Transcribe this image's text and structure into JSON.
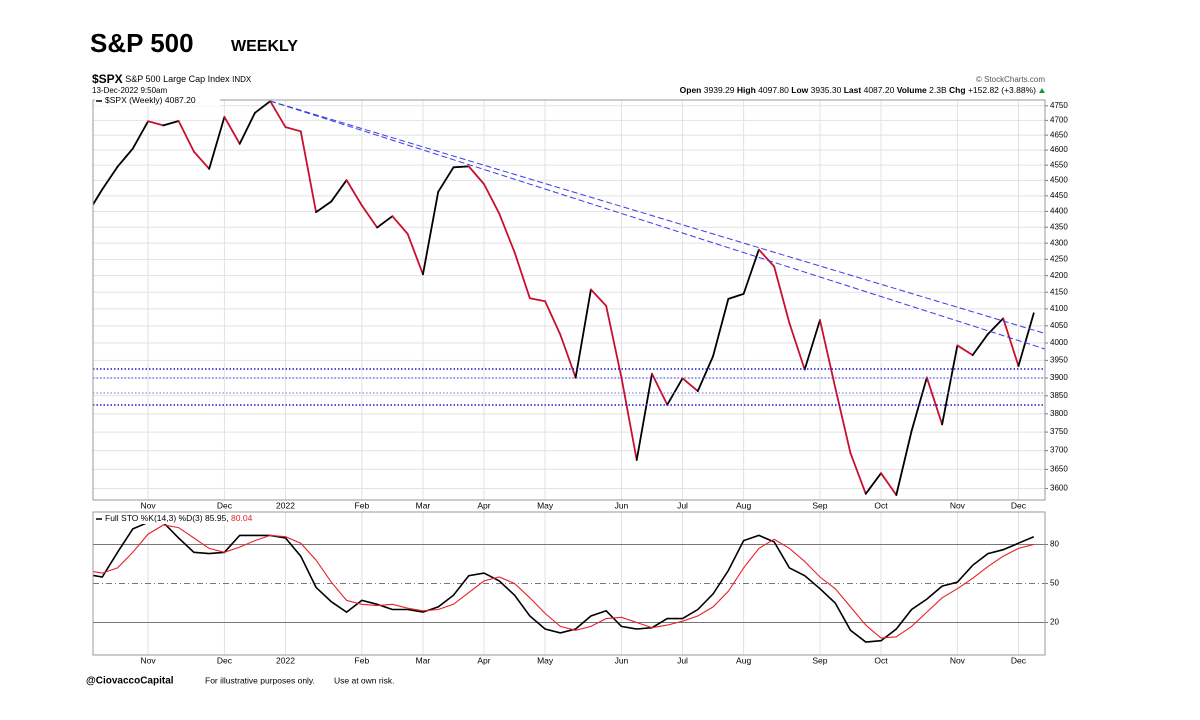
{
  "header": {
    "title": "S&P 500",
    "subtitle": "WEEKLY",
    "symbol": "$SPX",
    "name": "S&P 500 Large Cap Index",
    "exchange": "INDX",
    "date": "13-Dec-2022 9:50am",
    "source": "© StockCharts.com",
    "open_label": "Open",
    "open": "3939.29",
    "high_label": "High",
    "high": "4097.80",
    "low_label": "Low",
    "low": "3935.30",
    "last_label": "Last",
    "last": "4087.20",
    "volume_label": "Volume",
    "volume": "2.3B",
    "chg_label": "Chg",
    "chg": "+152.82 (+3.88%)"
  },
  "chart_data": [
    {
      "type": "line",
      "categories": [
        null,
        null,
        null,
        null,
        "Nov",
        null,
        null,
        null,
        null,
        "Dec",
        null,
        null,
        null,
        "2022",
        null,
        null,
        null,
        null,
        "Feb",
        null,
        null,
        null,
        "Mar",
        null,
        null,
        null,
        "Apr",
        null,
        null,
        null,
        "May",
        null,
        null,
        null,
        null,
        "Jun",
        null,
        null,
        null,
        "Jul",
        null,
        null,
        null,
        "Aug",
        null,
        null,
        null,
        null,
        "Sep",
        null,
        null,
        null,
        "Oct",
        null,
        null,
        null,
        null,
        "Nov",
        null,
        null,
        null,
        "Dec",
        null
      ],
      "series": [
        {
          "name": "$SPX (Weekly)",
          "up_color": "#000000",
          "down_color": "#c8102e",
          "values": [
            4391,
            4471,
            4545,
            4605,
            4697,
            4683,
            4698,
            4595,
            4538,
            4712,
            4621,
            4726,
            4766,
            4677,
            4663,
            4398,
            4432,
            4501,
            4419,
            4349,
            4385,
            4329,
            4204,
            4463,
            4543,
            4546,
            4488,
            4393,
            4272,
            4132,
            4123,
            4024,
            3901,
            4158,
            4109,
            3901,
            3675,
            3912,
            3825,
            3899,
            3863,
            3962,
            4130,
            4145,
            4280,
            4228,
            4058,
            3924,
            4067,
            3873,
            3693,
            3586,
            3640,
            3583,
            3753,
            3901,
            3771,
            3993,
            3965,
            4026,
            4072,
            3934,
            4087.2
          ]
        }
      ],
      "log_scale": true,
      "ylim": [
        3570,
        4770
      ],
      "yticks": [
        3600,
        3650,
        3700,
        3750,
        3800,
        3850,
        3900,
        3950,
        4000,
        4050,
        4100,
        4150,
        4200,
        4250,
        4300,
        4350,
        4400,
        4450,
        4500,
        4550,
        4600,
        4650,
        4700,
        4750
      ],
      "grid": true
    },
    {
      "type": "line",
      "label": "Full STO %K(14,3) %D(3)",
      "value_separator": ",",
      "categories": [
        null,
        null,
        null,
        null,
        "Nov",
        null,
        null,
        null,
        null,
        "Dec",
        null,
        null,
        null,
        "2022",
        null,
        null,
        null,
        null,
        "Feb",
        null,
        null,
        null,
        "Mar",
        null,
        null,
        null,
        "Apr",
        null,
        null,
        null,
        "May",
        null,
        null,
        null,
        null,
        "Jun",
        null,
        null,
        null,
        "Jul",
        null,
        null,
        null,
        "Aug",
        null,
        null,
        null,
        null,
        "Sep",
        null,
        null,
        null,
        "Oct",
        null,
        null,
        null,
        null,
        "Nov",
        null,
        null,
        null,
        "Dec",
        null
      ],
      "series": [
        {
          "name": "%K(14,3)",
          "color": "#000000",
          "values": [
            57,
            55,
            74,
            92,
            97,
            97,
            85,
            74,
            73,
            74,
            87,
            87,
            87,
            85,
            71,
            47,
            36,
            28,
            37,
            34,
            30,
            30,
            28,
            32,
            41,
            56,
            58,
            52,
            41,
            25,
            15,
            12,
            15,
            25,
            29,
            17,
            15,
            16,
            23,
            23,
            30,
            42,
            60,
            83,
            87,
            82,
            62,
            56,
            46,
            35,
            14,
            5,
            6,
            15,
            30,
            38,
            48,
            51,
            64,
            73,
            76,
            81,
            85.95
          ]
        },
        {
          "name": "%D(3)",
          "color": "#e8202a",
          "values": [
            60,
            58,
            62,
            74,
            88,
            95,
            93,
            85,
            77,
            74,
            78,
            83,
            87,
            86,
            81,
            68,
            51,
            37,
            34,
            33,
            34,
            31,
            29,
            30,
            34,
            43,
            52,
            55,
            50,
            39,
            27,
            17,
            14,
            17,
            23,
            24,
            20,
            16,
            18,
            21,
            25,
            32,
            44,
            62,
            77,
            84,
            77,
            67,
            55,
            46,
            32,
            18,
            8,
            9,
            17,
            28,
            39,
            46,
            54,
            63,
            71,
            77,
            80.04
          ]
        }
      ],
      "ylim": [
        -5,
        105
      ],
      "yticks": [
        20,
        50,
        80
      ],
      "tick_line_styles": [
        "solid",
        "dashdot",
        "solid"
      ],
      "grid": true
    }
  ],
  "footer": {
    "handle": "@CiovaccoCapital",
    "note1": "For illustrative purposes only.",
    "note2": "Use at own risk."
  }
}
